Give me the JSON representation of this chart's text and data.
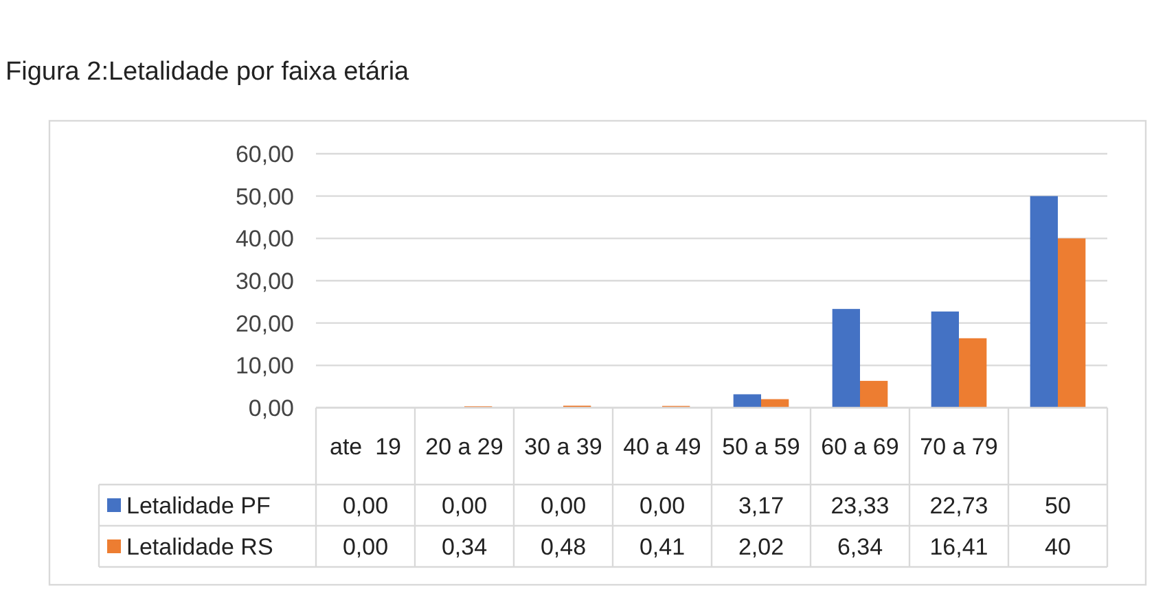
{
  "chart_data": {
    "type": "bar",
    "title": "Figura 2:Letalidade por faixa etária",
    "categories": [
      "ate  19",
      "20 a 29",
      "30 a 39",
      "40 a 49",
      "50 a 59",
      "60 a 69",
      "70 a 79",
      null
    ],
    "series": [
      {
        "name": "Letalidade PF",
        "color": "#4472c4",
        "values": [
          0,
          0,
          0,
          0,
          3.17,
          23.33,
          22.73,
          50
        ],
        "value_labels": [
          "0,00",
          "0,00",
          "0,00",
          "0,00",
          "3,17",
          "23,33",
          "22,73",
          "50"
        ]
      },
      {
        "name": "Letalidade RS",
        "color": "#ed7d31",
        "values": [
          0,
          0.34,
          0.48,
          0.41,
          2.02,
          6.34,
          16.41,
          40
        ],
        "value_labels": [
          "0,00",
          "0,34",
          "0,48",
          "0,41",
          "2,02",
          "6,34",
          "16,41",
          "40"
        ]
      }
    ],
    "ylim": [
      0,
      60
    ],
    "yticks": [
      {
        "value": 0,
        "label": "0,00"
      },
      {
        "value": 10,
        "label": "10,00"
      },
      {
        "value": 20,
        "label": "20,00"
      },
      {
        "value": 30,
        "label": "30,00"
      },
      {
        "value": 40,
        "label": "40,00"
      },
      {
        "value": 50,
        "label": "50,00"
      },
      {
        "value": 60,
        "label": "60,00"
      }
    ],
    "grid": "y",
    "legend": "bottom left"
  }
}
